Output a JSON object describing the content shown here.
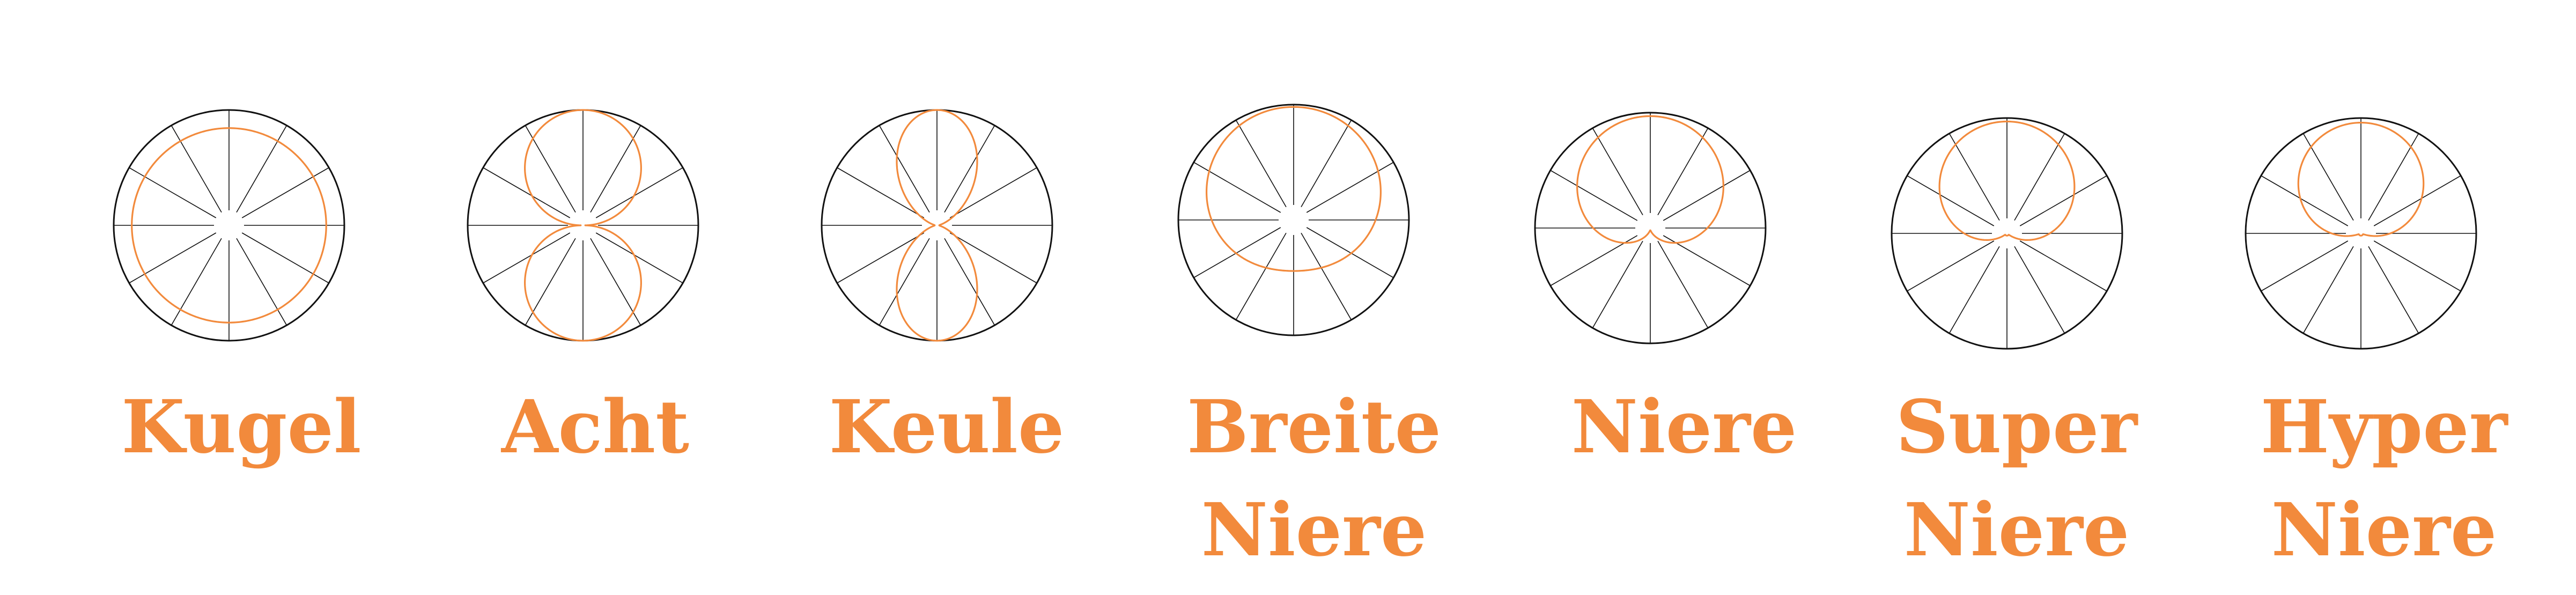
{
  "colors": {
    "accent": "#F28A3C",
    "outline": "#111111",
    "grid": "#555555"
  },
  "patterns": [
    {
      "id": "kugel",
      "lines": [
        "Kugel"
      ]
    },
    {
      "id": "acht",
      "lines": [
        "Acht"
      ]
    },
    {
      "id": "keule",
      "lines": [
        "Keule"
      ]
    },
    {
      "id": "breite-niere",
      "lines": [
        "Breite",
        "Niere"
      ]
    },
    {
      "id": "niere",
      "lines": [
        "Niere"
      ]
    },
    {
      "id": "super-niere",
      "lines": [
        "Super",
        "Niere"
      ]
    },
    {
      "id": "hyper-niere",
      "lines": [
        "Hyper",
        "Niere"
      ]
    }
  ]
}
